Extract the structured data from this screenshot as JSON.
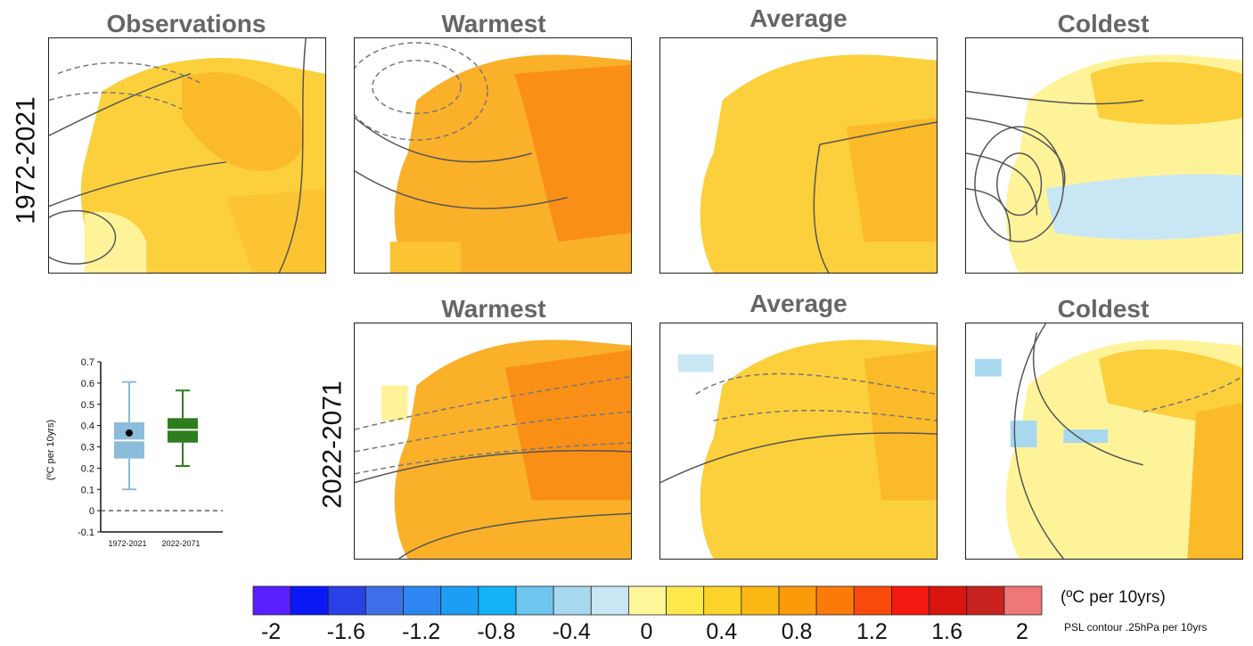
{
  "row_labels": [
    "1972-2021",
    "2022-2071"
  ],
  "panels": [
    {
      "title": "Observations",
      "tint": "obs"
    },
    {
      "title": "Warmest",
      "tint": "warm1"
    },
    {
      "title": "Average",
      "tint": "avg1"
    },
    {
      "title": "Coldest",
      "tint": "cold1"
    },
    {
      "title": "Warmest",
      "tint": "warm2"
    },
    {
      "title": "Average",
      "tint": "avg2"
    },
    {
      "title": "Coldest",
      "tint": "cold2"
    }
  ],
  "chart_data": [
    {
      "type": "box",
      "ylabel": "(ºC per 10yrs)",
      "ylim": [
        -0.1,
        0.7
      ],
      "yticks": [
        "0.7",
        "0.6",
        "0.5",
        "0.4",
        "0.3",
        "0.2",
        "0.1",
        "0",
        "-0.1"
      ],
      "ytick_values": [
        0.7,
        0.6,
        0.5,
        0.4,
        0.3,
        0.2,
        0.1,
        0,
        -0.1
      ],
      "zero_line": true,
      "boxes": [
        {
          "label": "1972-2021",
          "min": 0.1,
          "q1": 0.245,
          "median": 0.33,
          "q3": 0.415,
          "max": 0.605,
          "point": 0.365,
          "color": "#8bbcda"
        },
        {
          "label": "2022-2071",
          "min": 0.21,
          "q1": 0.32,
          "median": 0.38,
          "q3": 0.435,
          "max": 0.565,
          "point": null,
          "color": "#2e7d1e"
        }
      ]
    },
    {
      "type": "colorbar",
      "tick_labels": [
        "-2",
        "-1.6",
        "-1.2",
        "-0.8",
        "-0.4",
        "0",
        "0.4",
        "0.8",
        "1.2",
        "1.6",
        "2"
      ],
      "tick_values": [
        -2,
        -1.6,
        -1.2,
        -0.8,
        -0.4,
        0,
        0.4,
        0.8,
        1.2,
        1.6,
        2
      ],
      "colors": [
        "#5a1fff",
        "#0a18f5",
        "#2b3fe6",
        "#3f6fe8",
        "#2f86f2",
        "#1c9ef5",
        "#14b2f7",
        "#6ec5ee",
        "#a8d8f0",
        "#c9e6f5",
        "#fff59a",
        "#ffe84a",
        "#fcd42a",
        "#fcb914",
        "#fb9b0a",
        "#fb7a0a",
        "#f94a0c",
        "#f51810",
        "#d8150f",
        "#c8231f",
        "#ee7777"
      ],
      "unit_label": "(ºC per 10yrs)",
      "psl_label": "PSL contour .25hPa per 10yrs"
    }
  ]
}
